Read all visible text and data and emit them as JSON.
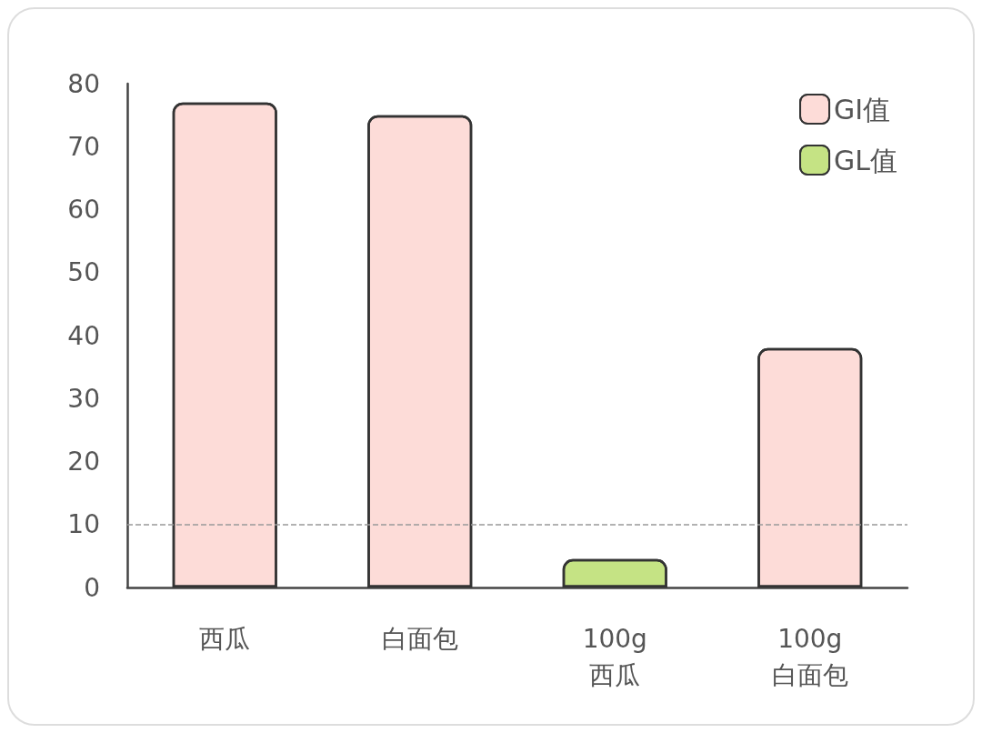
{
  "chart_data": {
    "type": "bar",
    "categories": [
      "西瓜",
      "白面包",
      "100g\n西瓜",
      "100g\n白面包"
    ],
    "series": [
      {
        "name": "GI值",
        "color": "#fddcd8",
        "values": [
          77,
          75,
          null,
          null
        ]
      },
      {
        "name": "GL值",
        "colors": [
          null,
          null,
          "#c5e384",
          "#fddcd8"
        ],
        "values": [
          null,
          null,
          4.5,
          38
        ]
      }
    ],
    "ylim": [
      0,
      80
    ],
    "yticks": [
      0,
      10,
      20,
      30,
      40,
      50,
      60,
      70,
      80
    ],
    "grid": false,
    "legend": "top right",
    "ref_lines": [
      {
        "axis": "y",
        "value": 10,
        "color": "#999999",
        "line_style": "dashed"
      }
    ]
  }
}
